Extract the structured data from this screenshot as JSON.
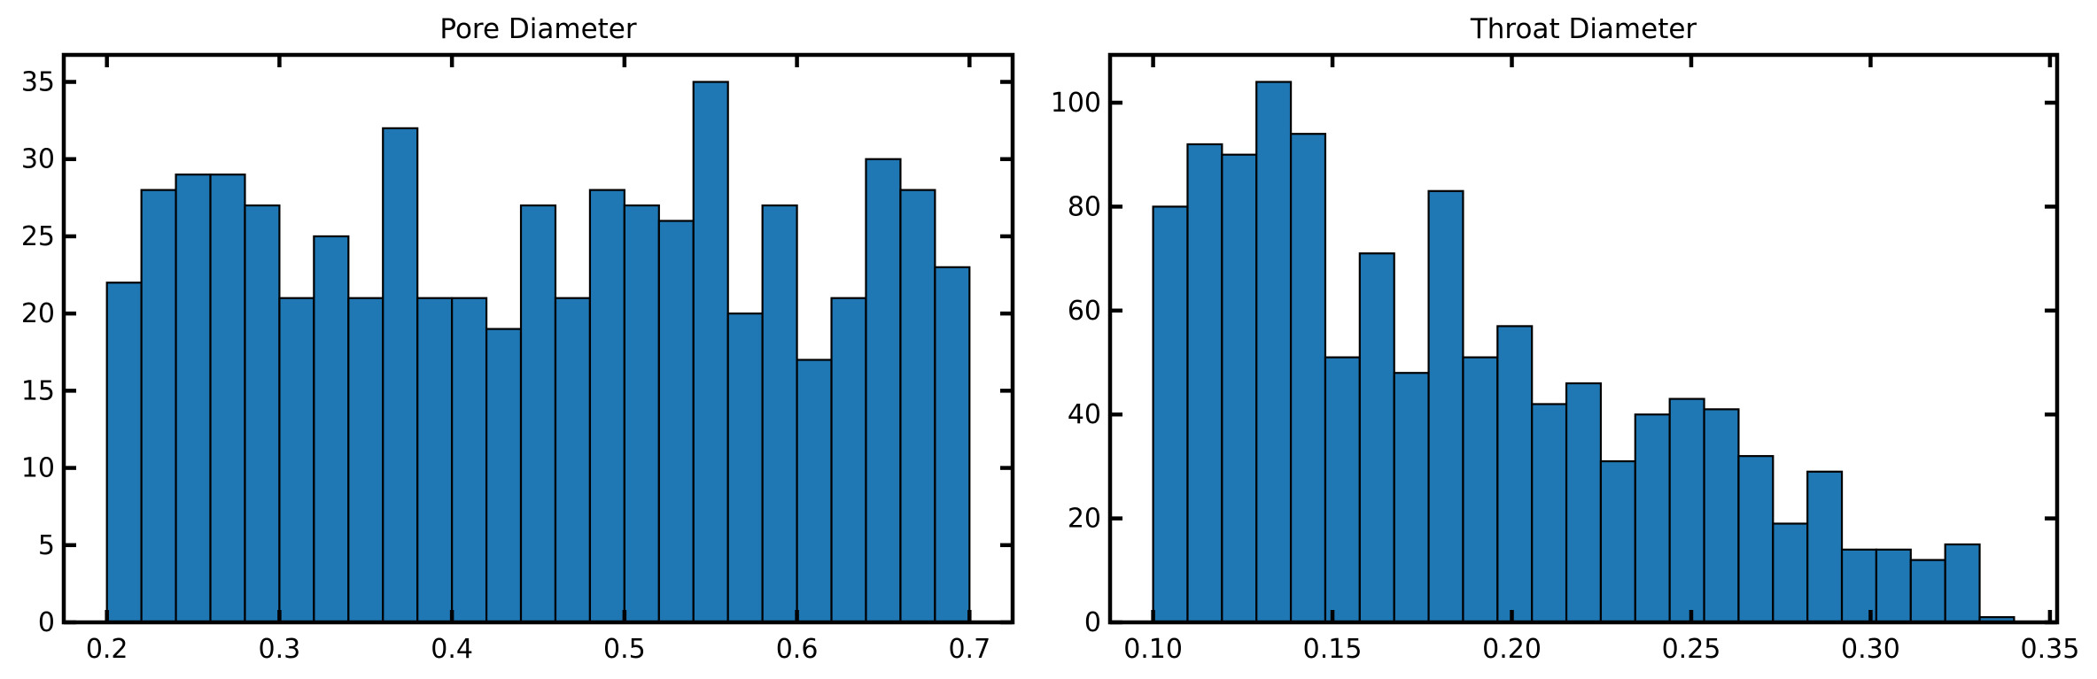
{
  "chart_data": [
    {
      "type": "bar",
      "title": "Pore Diameter",
      "xlabel": "",
      "ylabel": "",
      "bin_start": 0.2,
      "bin_width": 0.02,
      "values": [
        22,
        28,
        29,
        29,
        27,
        21,
        25,
        21,
        32,
        21,
        21,
        19,
        27,
        21,
        28,
        27,
        26,
        35,
        20,
        27,
        17,
        21,
        30,
        28,
        23
      ],
      "xlim": [
        0.175,
        0.725
      ],
      "ylim": [
        0,
        36.75
      ],
      "xticks": [
        0.2,
        0.3,
        0.4,
        0.5,
        0.6,
        0.7
      ],
      "xtick_labels": [
        "0.2",
        "0.3",
        "0.4",
        "0.5",
        "0.6",
        "0.7"
      ],
      "yticks": [
        0,
        5,
        10,
        15,
        20,
        25,
        30,
        35
      ],
      "ytick_labels": [
        "0",
        "5",
        "10",
        "15",
        "20",
        "25",
        "30",
        "35"
      ],
      "color": "#1f77b4",
      "grid": false
    },
    {
      "type": "bar",
      "title": "Throat Diameter",
      "xlabel": "",
      "ylabel": "",
      "bin_start": 0.1,
      "bin_width": 0.0096,
      "values": [
        80,
        92,
        90,
        104,
        94,
        51,
        71,
        48,
        83,
        51,
        57,
        42,
        46,
        31,
        40,
        43,
        41,
        32,
        19,
        29,
        14,
        14,
        12,
        15,
        1
      ],
      "xlim": [
        0.088,
        0.352
      ],
      "ylim": [
        0,
        109.2
      ],
      "xticks": [
        0.1,
        0.15,
        0.2,
        0.25,
        0.3,
        0.35
      ],
      "xtick_labels": [
        "0.10",
        "0.15",
        "0.20",
        "0.25",
        "0.30",
        "0.35"
      ],
      "yticks": [
        0,
        20,
        40,
        60,
        80,
        100
      ],
      "ytick_labels": [
        "0",
        "20",
        "40",
        "60",
        "80",
        "100"
      ],
      "color": "#1f77b4",
      "grid": false
    }
  ]
}
